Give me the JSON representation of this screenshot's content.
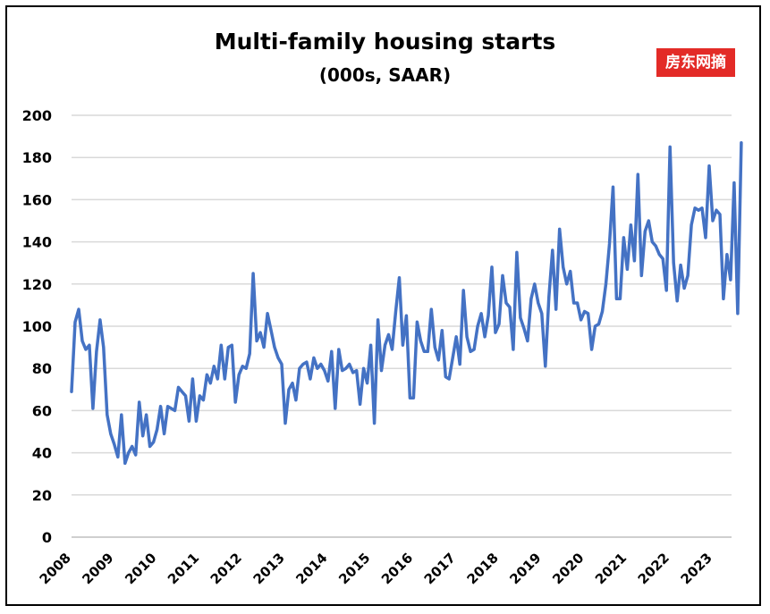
{
  "chart_data": {
    "type": "line",
    "title": "Multi-family housing starts",
    "subtitle": "(000s, SAAR)",
    "watermark": "房东网摘",
    "ylim": [
      0,
      200
    ],
    "yticks": [
      0,
      20,
      40,
      60,
      80,
      100,
      120,
      140,
      160,
      180,
      200
    ],
    "xticks": [
      "2008",
      "2009",
      "2010",
      "2011",
      "2012",
      "2013",
      "2014",
      "2015",
      "2016",
      "2017",
      "2018",
      "2019",
      "2020",
      "2021",
      "2022",
      "2023"
    ],
    "x_start": "2008-01",
    "frequency": "monthly",
    "grid": true,
    "line_color": "#4472c4",
    "series": [
      {
        "values": [
          69,
          102,
          108,
          93,
          89,
          91,
          61,
          88,
          103,
          90,
          58,
          49,
          44,
          38,
          58,
          35,
          40,
          43,
          39,
          64,
          48,
          58,
          43,
          45,
          51,
          62,
          49,
          62,
          61,
          60,
          71,
          69,
          67,
          55,
          75,
          55,
          67,
          65,
          77,
          73,
          81,
          75,
          91,
          75,
          90,
          91,
          64,
          77,
          81,
          80,
          87,
          125,
          93,
          97,
          90,
          106,
          98,
          90,
          85,
          82,
          54,
          70,
          73,
          65,
          80,
          82,
          83,
          75,
          85,
          80,
          82,
          79,
          74,
          88,
          61,
          89,
          79,
          80,
          82,
          78,
          79,
          63,
          80,
          73,
          91,
          54,
          103,
          79,
          91,
          96,
          89,
          107,
          123,
          91,
          105,
          66,
          66,
          102,
          93,
          88,
          88,
          108,
          90,
          84,
          98,
          76,
          75,
          85,
          95,
          82,
          117,
          95,
          88,
          89,
          100,
          106,
          95,
          105,
          128,
          97,
          101,
          124,
          111,
          109,
          89,
          135,
          104,
          99,
          93,
          113,
          120,
          111,
          106,
          81,
          114,
          136,
          108,
          146,
          128,
          120,
          126,
          111,
          111,
          103,
          107,
          106,
          89,
          100,
          101,
          107,
          120,
          139,
          166,
          113,
          113,
          142,
          127,
          148,
          131,
          172,
          124,
          145,
          150,
          140,
          138,
          134,
          132,
          117,
          185,
          130,
          112,
          129,
          118,
          124,
          148,
          156,
          155,
          156,
          142,
          176,
          150,
          155,
          153,
          113,
          134,
          122,
          168,
          106,
          187
        ]
      }
    ]
  }
}
